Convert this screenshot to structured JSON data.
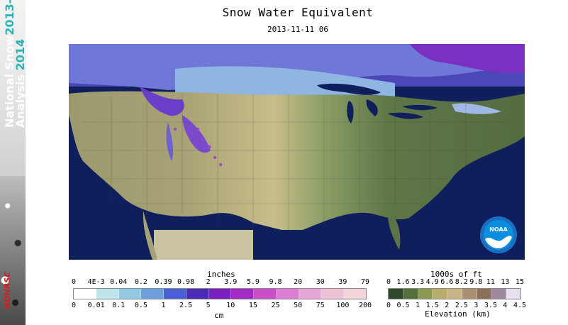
{
  "banner": {
    "line1": "National Snow",
    "line1_year": "2013-",
    "line2": "Analysis",
    "line2_year": "2014",
    "org": "NOHRSC"
  },
  "title": "Snow Water Equivalent",
  "timestamp": "2013-11-11 06",
  "swe_legend": {
    "top_unit": "inches",
    "bottom_unit": "cm",
    "top_labels": [
      "0",
      "4E-3",
      "0.04",
      "0.2",
      "0.39",
      "0.98",
      "2",
      "3.9",
      "5.9",
      "9.8",
      "20",
      "30",
      "39",
      "79"
    ],
    "bottom_labels": [
      "0",
      "0.01",
      "0.1",
      "0.5",
      "1",
      "2.5",
      "5",
      "10",
      "15",
      "25",
      "50",
      "75",
      "100",
      "200"
    ],
    "colors": [
      "#ffffff",
      "#bfe5ec",
      "#91c9e3",
      "#6c9fdc",
      "#4b5fd6",
      "#4a2ab8",
      "#7a1fc1",
      "#a22bc6",
      "#c94fc9",
      "#dc7ed2",
      "#e4a6d6",
      "#edc1d6",
      "#f2d4d8"
    ]
  },
  "elev_legend": {
    "top_unit": "1000s of ft",
    "bottom_unit": "Elevation (km)",
    "top_labels": [
      "0",
      "1.6",
      "3.3",
      "4.9",
      "6.6",
      "8.2",
      "9.8",
      "11",
      "13",
      "15"
    ],
    "bottom_labels": [
      "0",
      "0.5",
      "1",
      "1.5",
      "2",
      "2.5",
      "3",
      "3.5",
      "4",
      "4.5"
    ],
    "colors": [
      "#2e4a2a",
      "#55703a",
      "#8a9a52",
      "#b8ad6a",
      "#c9b487",
      "#a89070",
      "#8a6f5a",
      "#9d8aa0",
      "#e6e0ee"
    ]
  },
  "logo": {
    "text": "NOAA"
  }
}
